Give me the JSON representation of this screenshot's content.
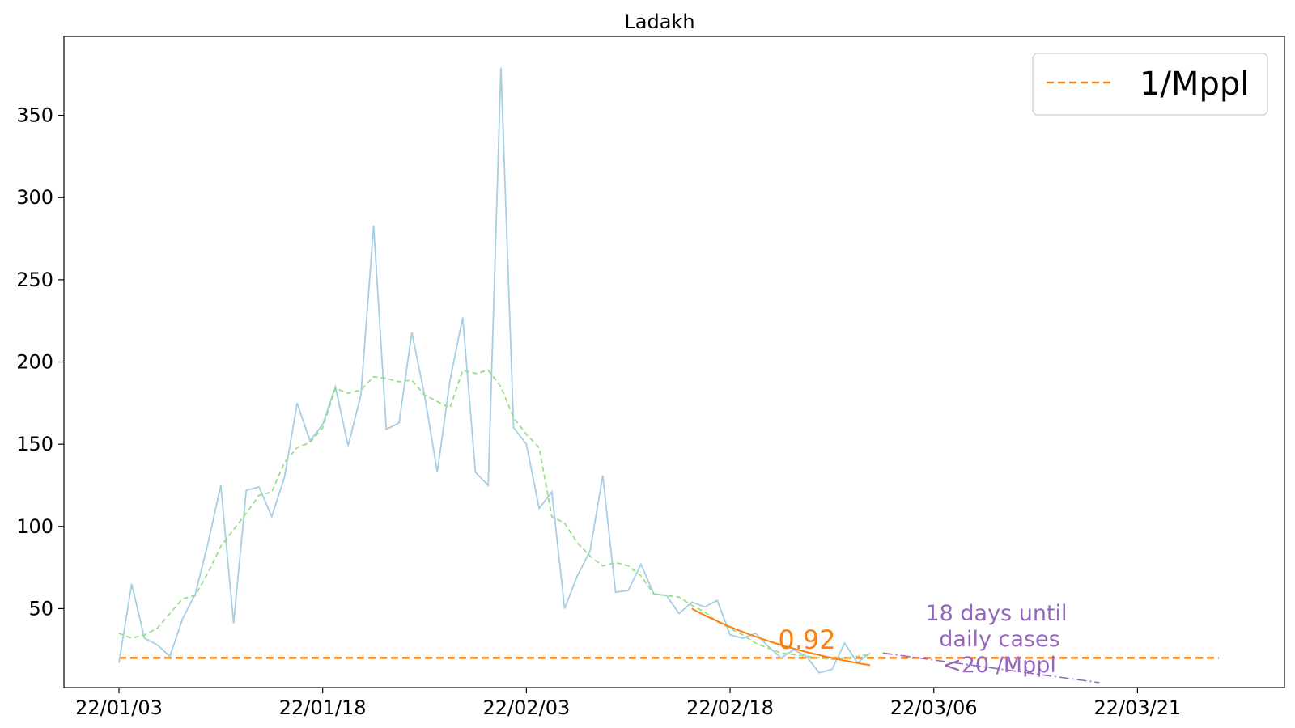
{
  "chart_data": {
    "type": "line",
    "title": "Ladakh",
    "xlabel": "",
    "ylabel": "",
    "x_start": "22/01/03",
    "x_tick_labels": [
      "22/01/03",
      "22/01/18",
      "22/02/03",
      "22/02/18",
      "22/03/06",
      "22/03/21",
      ""
    ],
    "y_tick_labels": [
      "50",
      "100",
      "150",
      "200",
      "250",
      "300",
      "350"
    ],
    "y_ticks": [
      50,
      100,
      150,
      200,
      250,
      300,
      350
    ],
    "ylim": [
      2,
      398
    ],
    "grid": false,
    "legend": {
      "placement": "top-right",
      "entries": [
        {
          "label": "1/Mppl",
          "style": "dashed",
          "color": "#ff7f0e"
        }
      ]
    },
    "series": [
      {
        "role": "daily-cases",
        "color": "#a6cee3",
        "style": "solid",
        "values": [
          17,
          65,
          32,
          28,
          21,
          44,
          59,
          90,
          125,
          41,
          122,
          124,
          106,
          130,
          175,
          152,
          162,
          185,
          149,
          180,
          283,
          159,
          163,
          218,
          180,
          133,
          189,
          227,
          133,
          125,
          379,
          160,
          150,
          111,
          121,
          50,
          70,
          85,
          131,
          60,
          61,
          77,
          59,
          58,
          47,
          54,
          51,
          55,
          34,
          32,
          35,
          27,
          20,
          25,
          21,
          11,
          13,
          29,
          17,
          23
        ]
      },
      {
        "role": "moving-average",
        "color": "#98df8a",
        "style": "dashed",
        "values": [
          35,
          32,
          34,
          38,
          47,
          56,
          58,
          72,
          88,
          98,
          108,
          119,
          121,
          139,
          148,
          151,
          160,
          184,
          181,
          183,
          191,
          190,
          188,
          189,
          180,
          176,
          172,
          195,
          193,
          195,
          185,
          166,
          156,
          148,
          106,
          102,
          90,
          82,
          76,
          78,
          76,
          70,
          59,
          58,
          57,
          52,
          48,
          42,
          38,
          34,
          29,
          26,
          23,
          22,
          21,
          20,
          19,
          20,
          21,
          22
        ]
      },
      {
        "role": "fit",
        "color": "#ff7f0e",
        "style": "solid",
        "x_start_index": 45,
        "x_end_index": 59,
        "y_start": 50,
        "daily_factor": 0.92
      },
      {
        "role": "projection",
        "color": "#9467bd",
        "style": "dashdot",
        "x_start_index": 60,
        "x_end_index": 77,
        "y_start": 23,
        "y_end": 5
      }
    ],
    "threshold": {
      "label": "1/Mppl",
      "y": 20,
      "color": "#ff7f0e",
      "style": "dashed"
    },
    "annotations": {
      "growth_factor": "0.92",
      "days_until": [
        "18 days until",
        "daily cases",
        "<20 /Mppl"
      ]
    }
  }
}
